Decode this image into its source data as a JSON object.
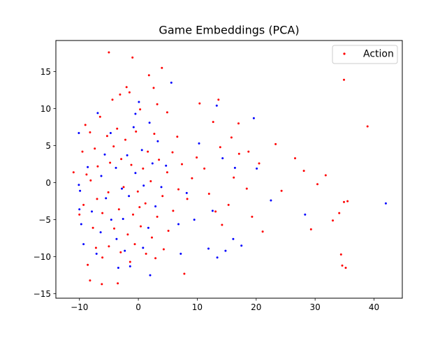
{
  "chart_data": {
    "type": "scatter",
    "title": "Game Embeddings (PCA)",
    "xlabel": "",
    "ylabel": "",
    "xlim": [
      -14.0,
      44.8
    ],
    "ylim": [
      -15.6,
      19.2
    ],
    "x_ticks": [
      -10,
      0,
      10,
      20,
      30,
      40
    ],
    "y_ticks": [
      -15,
      -10,
      -5,
      0,
      5,
      10,
      15
    ],
    "x_tick_labels": [
      "−10",
      "0",
      "10",
      "20",
      "30",
      "40"
    ],
    "y_tick_labels": [
      "−15",
      "−10",
      "−5",
      "0",
      "5",
      "10",
      "15"
    ],
    "grid": false,
    "legend": {
      "position": "top-right",
      "entries": [
        "Action"
      ]
    },
    "colors": {
      "Action": "#ff0000",
      "unlabeled": "#0000ff"
    },
    "series": [
      {
        "name": "Action",
        "color": "#ff0000",
        "points": [
          [
            -5.0,
            17.6
          ],
          [
            -1.0,
            16.9
          ],
          [
            4.0,
            15.5
          ],
          [
            1.8,
            14.5
          ],
          [
            34.9,
            13.9
          ],
          [
            -2.0,
            12.9
          ],
          [
            -1.5,
            12.2
          ],
          [
            2.6,
            12.8
          ],
          [
            -3.1,
            11.9
          ],
          [
            -4.4,
            11.2
          ],
          [
            13.6,
            11.2
          ],
          [
            3.2,
            10.6
          ],
          [
            10.4,
            10.7
          ],
          [
            4.9,
            9.5
          ],
          [
            0.3,
            9.9
          ],
          [
            17.0,
            8.0
          ],
          [
            38.9,
            7.6
          ],
          [
            23.3,
            5.2
          ],
          [
            26.6,
            3.3
          ],
          [
            18.7,
            4.2
          ],
          [
            20.5,
            2.6
          ],
          [
            28.1,
            1.6
          ],
          [
            31.8,
            1.0
          ],
          [
            30.4,
            -0.2
          ],
          [
            24.3,
            -1.1
          ],
          [
            21.1,
            -6.6
          ],
          [
            29.3,
            -6.3
          ],
          [
            33.0,
            -5.1
          ],
          [
            34.9,
            -2.6
          ],
          [
            35.5,
            -2.5
          ],
          [
            34.1,
            -4.1
          ],
          [
            34.4,
            -9.7
          ],
          [
            34.6,
            -11.2
          ],
          [
            35.2,
            -11.5
          ],
          [
            7.8,
            -12.3
          ],
          [
            -8.2,
            -13.2
          ],
          [
            -6.2,
            -13.7
          ],
          [
            -3.5,
            -13.6
          ],
          [
            -11.0,
            1.4
          ],
          [
            -9.3,
            -3.0
          ],
          [
            -10.0,
            -4.3
          ],
          [
            -9.0,
            7.8
          ],
          [
            -8.2,
            6.8
          ],
          [
            -7.4,
            4.6
          ],
          [
            -6.5,
            8.9
          ],
          [
            -5.3,
            6.3
          ],
          [
            -6.9,
            2.2
          ],
          [
            -8.1,
            0.3
          ],
          [
            -7.0,
            -2.2
          ],
          [
            -6.1,
            -4.1
          ],
          [
            -5.1,
            -1.3
          ],
          [
            -4.8,
            2.7
          ],
          [
            -4.2,
            4.9
          ],
          [
            -3.6,
            7.3
          ],
          [
            -2.9,
            3.2
          ],
          [
            -2.5,
            -0.6
          ],
          [
            -3.3,
            -3.6
          ],
          [
            -4.1,
            -6.2
          ],
          [
            -5.0,
            -8.6
          ],
          [
            -6.1,
            -10.1
          ],
          [
            -3.0,
            -9.4
          ],
          [
            -1.8,
            -7.0
          ],
          [
            -0.9,
            -4.3
          ],
          [
            -0.1,
            -1.2
          ],
          [
            0.8,
            1.9
          ],
          [
            1.6,
            4.2
          ],
          [
            2.7,
            6.6
          ],
          [
            3.5,
            3.1
          ],
          [
            2.1,
            0.2
          ],
          [
            1.2,
            -2.8
          ],
          [
            0.4,
            -5.9
          ],
          [
            -0.6,
            -8.3
          ],
          [
            -1.4,
            -10.7
          ],
          [
            1.3,
            -9.6
          ],
          [
            2.3,
            -7.4
          ],
          [
            3.2,
            -4.6
          ],
          [
            4.1,
            -1.8
          ],
          [
            4.9,
            1.4
          ],
          [
            5.8,
            4.1
          ],
          [
            6.6,
            6.2
          ],
          [
            7.4,
            2.5
          ],
          [
            6.8,
            -0.9
          ],
          [
            5.9,
            -3.8
          ],
          [
            5.1,
            -6.5
          ],
          [
            4.3,
            -9.0
          ],
          [
            8.3,
            -2.2
          ],
          [
            9.1,
            0.6
          ],
          [
            9.9,
            3.4
          ],
          [
            11.2,
            1.9
          ],
          [
            12.0,
            -1.5
          ],
          [
            13.1,
            -3.9
          ],
          [
            14.2,
            -5.7
          ],
          [
            15.3,
            -3.0
          ],
          [
            16.2,
            0.7
          ],
          [
            17.1,
            3.9
          ],
          [
            18.4,
            -0.8
          ],
          [
            19.3,
            -4.6
          ],
          [
            15.8,
            6.1
          ],
          [
            13.9,
            4.8
          ],
          [
            12.7,
            8.2
          ],
          [
            -9.5,
            4.2
          ],
          [
            -8.8,
            1.1
          ],
          [
            -7.7,
            -6.1
          ],
          [
            -7.2,
            -8.8
          ],
          [
            -8.6,
            -11.1
          ],
          [
            -2.2,
            5.8
          ],
          [
            -1.2,
            2.4
          ],
          [
            0.2,
            -3.3
          ],
          [
            -0.4,
            6.9
          ],
          [
            2.9,
            -10.2
          ]
        ]
      },
      {
        "name": "",
        "color": "#0000ff",
        "points": [
          [
            5.6,
            13.5
          ],
          [
            13.3,
            10.4
          ],
          [
            0.1,
            10.9
          ],
          [
            -0.5,
            9.3
          ],
          [
            -6.9,
            9.4
          ],
          [
            -10.1,
            6.7
          ],
          [
            19.6,
            8.7
          ],
          [
            -8.6,
            2.1
          ],
          [
            -10.1,
            -0.3
          ],
          [
            -9.9,
            -1.1
          ],
          [
            -10.0,
            -3.6
          ],
          [
            -9.7,
            -5.6
          ],
          [
            -9.3,
            -8.3
          ],
          [
            -7.1,
            -9.6
          ],
          [
            -3.4,
            -11.5
          ],
          [
            -1.4,
            -11.3
          ],
          [
            2.0,
            -12.5
          ],
          [
            0.8,
            -8.8
          ],
          [
            1.7,
            -6.1
          ],
          [
            2.9,
            -3.2
          ],
          [
            3.9,
            -0.6
          ],
          [
            4.7,
            2.3
          ],
          [
            3.3,
            5.6
          ],
          [
            1.9,
            8.1
          ],
          [
            0.6,
            4.4
          ],
          [
            -0.5,
            1.3
          ],
          [
            -1.6,
            -1.8
          ],
          [
            -2.6,
            -4.9
          ],
          [
            -3.7,
            -7.6
          ],
          [
            -4.6,
            -5.0
          ],
          [
            -5.5,
            -2.1
          ],
          [
            -6.3,
            0.9
          ],
          [
            -5.7,
            3.8
          ],
          [
            -4.7,
            6.7
          ],
          [
            -3.8,
            2.0
          ],
          [
            -2.8,
            -0.8
          ],
          [
            -1.9,
            3.7
          ],
          [
            -0.8,
            7.5
          ],
          [
            0.9,
            -0.4
          ],
          [
            2.4,
            2.6
          ],
          [
            6.8,
            -5.6
          ],
          [
            7.2,
            -9.6
          ],
          [
            8.2,
            -1.4
          ],
          [
            10.3,
            5.3
          ],
          [
            12.6,
            -3.8
          ],
          [
            11.9,
            -8.9
          ],
          [
            13.4,
            -10.1
          ],
          [
            14.8,
            -9.2
          ],
          [
            16.1,
            -7.6
          ],
          [
            17.5,
            -8.5
          ],
          [
            20.1,
            1.9
          ],
          [
            22.5,
            -2.4
          ],
          [
            28.3,
            -4.3
          ],
          [
            42.0,
            -2.8
          ],
          [
            16.4,
            2.0
          ],
          [
            14.3,
            3.3
          ],
          [
            9.5,
            -5.0
          ],
          [
            -7.9,
            -3.9
          ],
          [
            -6.4,
            -6.7
          ],
          [
            -2.3,
            -9.2
          ]
        ]
      }
    ]
  }
}
